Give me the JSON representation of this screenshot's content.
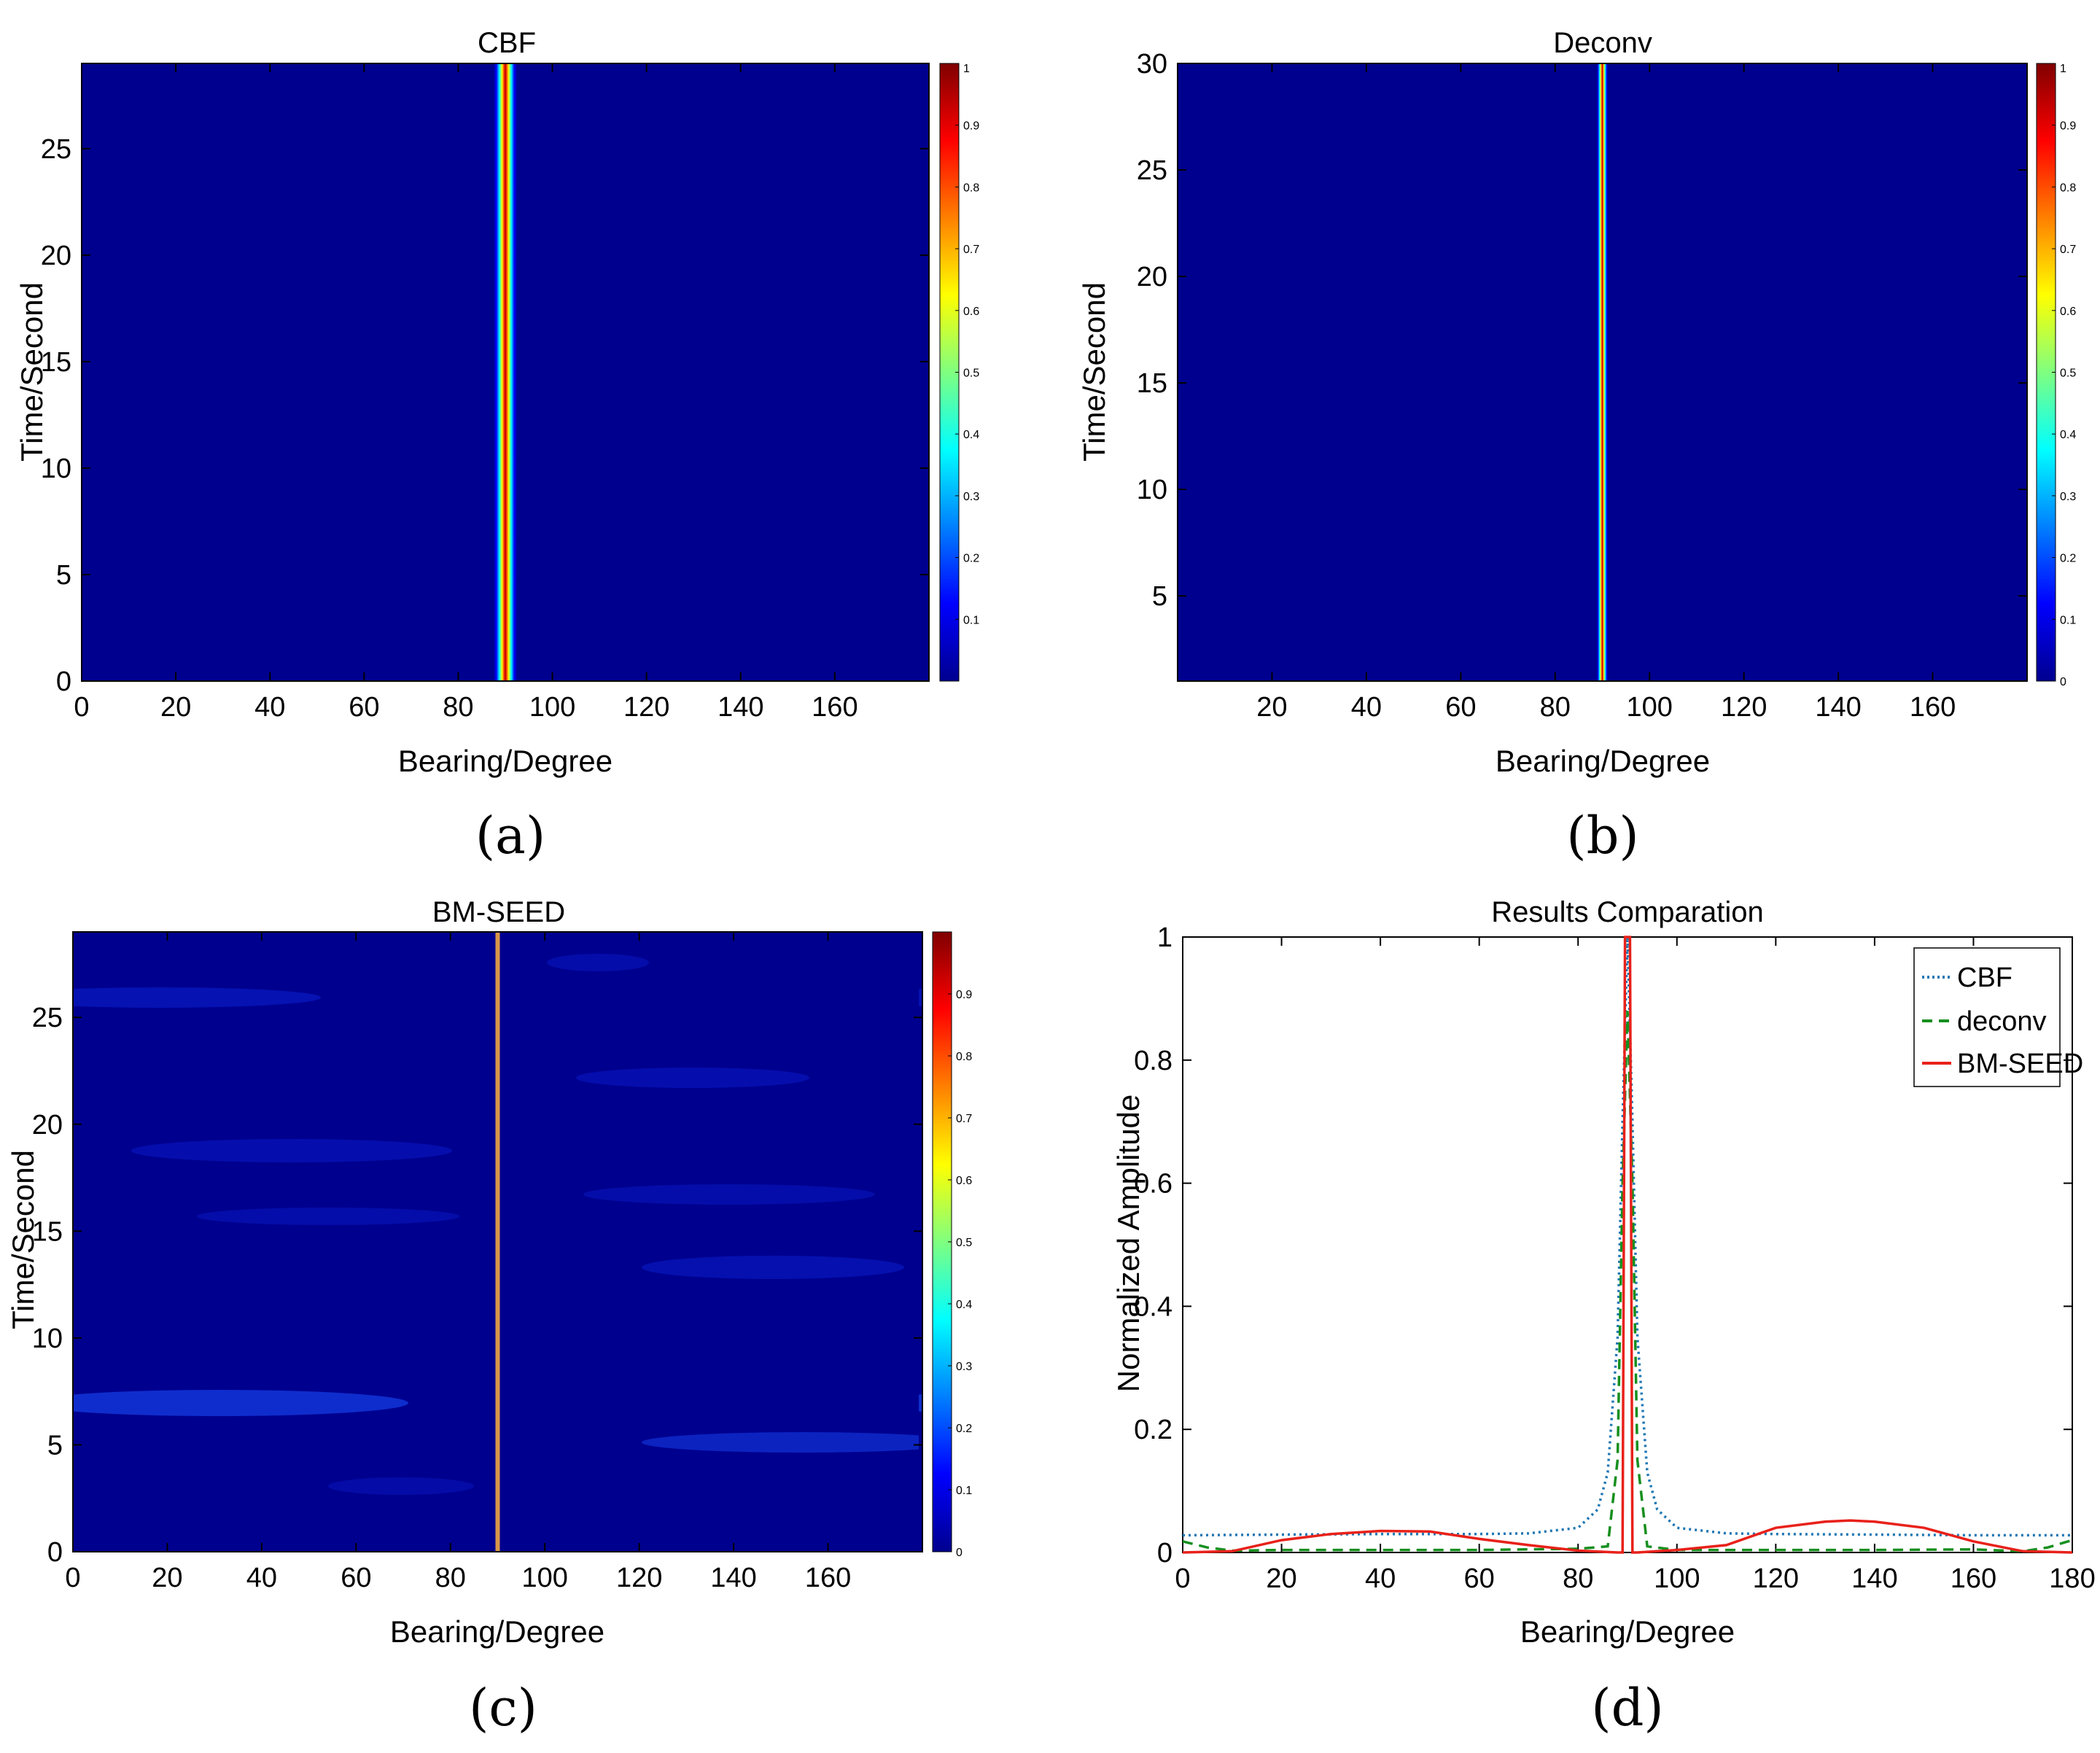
{
  "figure": {
    "captions": [
      "(a)",
      "(b)",
      "(c)",
      "(d)"
    ]
  },
  "chart_data": [
    {
      "type": "heatmap",
      "panel": "a",
      "title": "CBF",
      "xlabel": "Bearing/Degree",
      "ylabel": "Time/Second",
      "xlim": [
        0,
        180
      ],
      "ylim": [
        0,
        29
      ],
      "xticks": [
        0,
        20,
        40,
        60,
        80,
        100,
        120,
        140,
        160
      ],
      "yticks": [
        0,
        5,
        10,
        15,
        20,
        25
      ],
      "peak_bearing": 90,
      "peak_width_deg": 2.5,
      "colormap": "jet",
      "colorbar": {
        "range": [
          0,
          1
        ],
        "ticks": [
          "0.1",
          "0.2",
          "0.3",
          "0.4",
          "0.5",
          "0.6",
          "0.7",
          "0.8",
          "0.9",
          "1"
        ]
      }
    },
    {
      "type": "heatmap",
      "panel": "b",
      "title": "Deconv",
      "xlabel": "Bearing/Degree",
      "ylabel": "Time/Second",
      "xlim": [
        0,
        180
      ],
      "ylim": [
        1,
        30
      ],
      "xticks": [
        20,
        40,
        60,
        80,
        100,
        120,
        140,
        160
      ],
      "yticks": [
        5,
        10,
        15,
        20,
        25,
        30
      ],
      "peak_bearing": 90,
      "peak_width_deg": 1.2,
      "colormap": "jet",
      "colorbar": {
        "range": [
          0,
          1
        ],
        "ticks": [
          "0",
          "0.1",
          "0.2",
          "0.3",
          "0.4",
          "0.5",
          "0.6",
          "0.7",
          "0.8",
          "0.9",
          "1"
        ]
      }
    },
    {
      "type": "heatmap",
      "panel": "c",
      "title": "BM-SEED",
      "xlabel": "Bearing/Degree",
      "ylabel": "Time/Second",
      "xlim": [
        0,
        180
      ],
      "ylim": [
        0,
        29
      ],
      "xticks": [
        0,
        20,
        40,
        60,
        80,
        100,
        120,
        140,
        160
      ],
      "yticks": [
        0,
        5,
        10,
        15,
        20,
        25
      ],
      "peak_bearing": 90,
      "colormap": "jet",
      "colorbar": {
        "range": [
          0,
          1
        ],
        "ticks": [
          "0",
          "0.1",
          "0.2",
          "0.3",
          "0.4",
          "0.5",
          "0.6",
          "0.7",
          "0.8",
          "0.9"
        ]
      }
    },
    {
      "type": "line",
      "panel": "d",
      "title": "Results Comparation",
      "xlabel": "Bearing/Degree",
      "ylabel": "Normalized Amplitude",
      "xlim": [
        0,
        180
      ],
      "ylim": [
        0,
        1
      ],
      "xticks": [
        0,
        20,
        40,
        60,
        80,
        100,
        120,
        140,
        160,
        180
      ],
      "yticks": [
        0,
        0.2,
        0.4,
        0.6,
        0.8,
        1
      ],
      "legend_position": "top-right",
      "series": [
        {
          "name": "CBF",
          "color": "#1f77b4",
          "style": "dotted",
          "x": [
            0,
            20,
            40,
            60,
            70,
            80,
            84,
            86,
            88,
            89,
            90,
            91,
            92,
            94,
            96,
            100,
            110,
            120,
            140,
            160,
            180
          ],
          "y": [
            0.028,
            0.029,
            0.03,
            0.03,
            0.031,
            0.04,
            0.07,
            0.13,
            0.35,
            0.7,
            1.0,
            0.7,
            0.35,
            0.13,
            0.07,
            0.04,
            0.031,
            0.03,
            0.029,
            0.028,
            0.028
          ]
        },
        {
          "name": "deconv",
          "color": "#178f1f",
          "style": "dashed",
          "x": [
            0,
            5,
            10,
            20,
            40,
            60,
            80,
            86,
            88,
            89,
            90,
            91,
            92,
            94,
            100,
            120,
            140,
            160,
            170,
            175,
            180
          ],
          "y": [
            0.018,
            0.008,
            0.003,
            0.004,
            0.004,
            0.004,
            0.006,
            0.01,
            0.15,
            0.6,
            0.88,
            0.6,
            0.15,
            0.01,
            0.004,
            0.004,
            0.004,
            0.005,
            0.002,
            0.008,
            0.02
          ]
        },
        {
          "name": "BM-SEED",
          "color": "#e8211a",
          "style": "solid",
          "x": [
            0,
            10,
            20,
            30,
            40,
            50,
            60,
            70,
            80,
            88,
            89,
            89.5,
            90,
            90.5,
            91,
            92,
            100,
            110,
            120,
            130,
            135,
            140,
            150,
            160,
            170,
            180
          ],
          "y": [
            0.0,
            0.002,
            0.02,
            0.03,
            0.035,
            0.034,
            0.022,
            0.012,
            0.003,
            0.0,
            0.0,
            1.0,
            1.0,
            1.0,
            0.0,
            0.0,
            0.004,
            0.012,
            0.04,
            0.05,
            0.052,
            0.05,
            0.04,
            0.018,
            0.002,
            0.0
          ]
        }
      ]
    }
  ]
}
